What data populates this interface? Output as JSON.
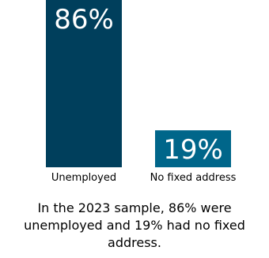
{
  "chart_data": {
    "type": "bar",
    "categories": [
      "Unemployed",
      "No fixed address"
    ],
    "values": [
      86,
      19
    ],
    "value_labels": [
      "86%",
      "19%"
    ],
    "ylim": [
      0,
      86
    ],
    "grid": false,
    "colors": [
      "#003f5c",
      "#00668a"
    ]
  },
  "caption": "In the 2023 sample, 86% were unemployed and 19% had no fixed address."
}
